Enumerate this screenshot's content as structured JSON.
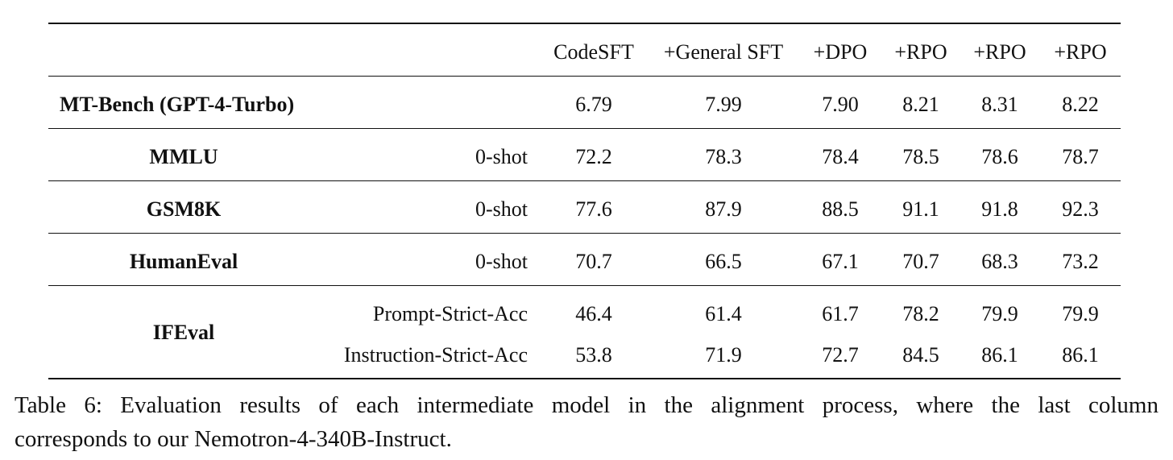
{
  "table": {
    "headers": [
      "CodeSFT",
      "+General SFT",
      "+DPO",
      "+RPO",
      "+RPO",
      "+RPO"
    ],
    "rows": [
      {
        "benchmark": "MT-Bench (GPT-4-Turbo)",
        "setting": "",
        "values": [
          "6.79",
          "7.99",
          "7.90",
          "8.21",
          "8.31",
          "8.22"
        ]
      },
      {
        "benchmark": "MMLU",
        "setting": "0-shot",
        "values": [
          "72.2",
          "78.3",
          "78.4",
          "78.5",
          "78.6",
          "78.7"
        ]
      },
      {
        "benchmark": "GSM8K",
        "setting": "0-shot",
        "values": [
          "77.6",
          "87.9",
          "88.5",
          "91.1",
          "91.8",
          "92.3"
        ]
      },
      {
        "benchmark": "HumanEval",
        "setting": "0-shot",
        "values": [
          "70.7",
          "66.5",
          "67.1",
          "70.7",
          "68.3",
          "73.2"
        ]
      },
      {
        "benchmark": "IFEval",
        "setting": "Prompt-Strict-Acc",
        "values": [
          "46.4",
          "61.4",
          "61.7",
          "78.2",
          "79.9",
          "79.9"
        ]
      },
      {
        "benchmark": "",
        "setting": "Instruction-Strict-Acc",
        "values": [
          "53.8",
          "71.9",
          "72.7",
          "84.5",
          "86.1",
          "86.1"
        ]
      }
    ]
  },
  "caption": {
    "line1": "Table 6: Evaluation results of each intermediate model in the alignment process, where the last column",
    "line2": "corresponds to our Nemotron-4-340B-Instruct."
  }
}
